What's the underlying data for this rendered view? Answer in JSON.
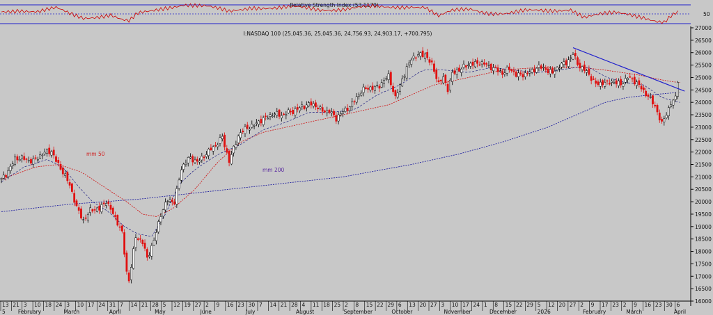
{
  "chart_data": {
    "type": "candlestick",
    "title": "I:NASDAQ 100 (25,045.36, 25,045.36, 24,756.93, 24,903.17, +700.795)",
    "colors": {
      "background": "#c8c8c8",
      "up_candle": "#ffffff",
      "down_candle": "#e01010",
      "candle_outline": "#000000",
      "ma50": "#d02020",
      "ma200": "#2020a0",
      "ma20": "#1a1a80",
      "trendline": "#2222cc",
      "rsi_line": "#cc0000",
      "rsi_bounds": "#2020cc"
    },
    "grid": false,
    "y_axis": {
      "min": 16000,
      "max": 27000,
      "side": "right",
      "ticks": [
        16000,
        16500,
        17000,
        17500,
        18000,
        18500,
        19000,
        19500,
        20000,
        20500,
        21000,
        21500,
        22000,
        22500,
        23000,
        23500,
        24000,
        24500,
        25000,
        25500,
        26000,
        26500,
        27000
      ]
    },
    "x_axis": {
      "day_ticks": [
        "13",
        "21",
        "3",
        "10",
        "18",
        "24",
        "3",
        "10",
        "17",
        "24",
        "31",
        "7",
        "14",
        "21",
        "28",
        "5",
        "12",
        "19",
        "27",
        "2",
        "9",
        "16",
        "23",
        "30",
        "7",
        "14",
        "21",
        "28",
        "4",
        "11",
        "18",
        "25",
        "2",
        "8",
        "15",
        "22",
        "29",
        "6",
        "13",
        "20",
        "27",
        "3",
        "10",
        "17",
        "24",
        "1",
        "8",
        "15",
        "22",
        "29",
        "5",
        "12",
        "20",
        "27",
        "2",
        "9",
        "17",
        "23",
        "2",
        "9",
        "16",
        "23",
        "30",
        "6"
      ],
      "month_labels": [
        {
          "label": "5",
          "at_day": 0
        },
        {
          "label": "February",
          "at_day": 7
        },
        {
          "label": "March",
          "at_day": 27
        },
        {
          "label": "April",
          "at_day": 47
        },
        {
          "label": "May",
          "at_day": 67
        },
        {
          "label": "June",
          "at_day": 87
        },
        {
          "label": "July",
          "at_day": 107
        },
        {
          "label": "August",
          "at_day": 129
        },
        {
          "label": "September",
          "at_day": 150
        },
        {
          "label": "October",
          "at_day": 171
        },
        {
          "label": "November",
          "at_day": 194
        },
        {
          "label": "December",
          "at_day": 214
        },
        {
          "label": "2026",
          "at_day": 235
        },
        {
          "label": "February",
          "at_day": 255
        },
        {
          "label": "March",
          "at_day": 274
        },
        {
          "label": "April",
          "at_day": 295
        }
      ]
    },
    "anchors": [
      [
        0,
        20900
      ],
      [
        6,
        21700
      ],
      [
        14,
        21700
      ],
      [
        22,
        22050
      ],
      [
        27,
        21200
      ],
      [
        30,
        20600
      ],
      [
        33,
        19800
      ],
      [
        36,
        19300
      ],
      [
        39,
        19600
      ],
      [
        43,
        19700
      ],
      [
        46,
        20100
      ],
      [
        50,
        19300
      ],
      [
        53,
        18700
      ],
      [
        55,
        17200
      ],
      [
        56,
        16900
      ],
      [
        59,
        18600
      ],
      [
        62,
        18300
      ],
      [
        64,
        17700
      ],
      [
        67,
        18500
      ],
      [
        70,
        19500
      ],
      [
        73,
        20000
      ],
      [
        76,
        20000
      ],
      [
        79,
        21400
      ],
      [
        82,
        21700
      ],
      [
        86,
        21600
      ],
      [
        90,
        22000
      ],
      [
        94,
        22200
      ],
      [
        97,
        22600
      ],
      [
        100,
        21700
      ],
      [
        104,
        22600
      ],
      [
        108,
        23000
      ],
      [
        112,
        23200
      ],
      [
        116,
        23300
      ],
      [
        120,
        23600
      ],
      [
        124,
        23500
      ],
      [
        128,
        23600
      ],
      [
        132,
        23900
      ],
      [
        136,
        23900
      ],
      [
        140,
        23700
      ],
      [
        144,
        23700
      ],
      [
        147,
        23300
      ],
      [
        150,
        23600
      ],
      [
        154,
        24000
      ],
      [
        158,
        24400
      ],
      [
        162,
        24600
      ],
      [
        166,
        24700
      ],
      [
        170,
        25000
      ],
      [
        173,
        24200
      ],
      [
        176,
        25000
      ],
      [
        180,
        25700
      ],
      [
        183,
        25900
      ],
      [
        186,
        26000
      ],
      [
        189,
        25500
      ],
      [
        192,
        24700
      ],
      [
        194,
        25000
      ],
      [
        196,
        24600
      ],
      [
        198,
        25200
      ],
      [
        202,
        25300
      ],
      [
        206,
        25600
      ],
      [
        210,
        25600
      ],
      [
        214,
        25400
      ],
      [
        217,
        25400
      ],
      [
        220,
        25200
      ],
      [
        223,
        25300
      ],
      [
        226,
        25100
      ],
      [
        230,
        25200
      ],
      [
        233,
        25200
      ],
      [
        236,
        25400
      ],
      [
        239,
        25400
      ],
      [
        242,
        25200
      ],
      [
        245,
        25400
      ],
      [
        248,
        25600
      ],
      [
        251,
        26000
      ],
      [
        254,
        25400
      ],
      [
        258,
        25100
      ],
      [
        261,
        24800
      ],
      [
        264,
        24800
      ],
      [
        266,
        24700
      ],
      [
        268,
        24800
      ],
      [
        272,
        24800
      ],
      [
        275,
        25000
      ],
      [
        278,
        24800
      ],
      [
        281,
        24600
      ],
      [
        284,
        24300
      ],
      [
        287,
        23800
      ],
      [
        289,
        23300
      ],
      [
        290,
        23100
      ],
      [
        292,
        23600
      ],
      [
        294,
        24000
      ],
      [
        296,
        24200
      ],
      [
        297,
        24900
      ]
    ],
    "ma50": {
      "label": "mm 50",
      "anchors": [
        [
          0,
          20900
        ],
        [
          15,
          21400
        ],
        [
          25,
          21500
        ],
        [
          35,
          21200
        ],
        [
          45,
          20600
        ],
        [
          55,
          20000
        ],
        [
          62,
          19500
        ],
        [
          68,
          19400
        ],
        [
          75,
          19700
        ],
        [
          85,
          20500
        ],
        [
          95,
          21600
        ],
        [
          105,
          22400
        ],
        [
          115,
          22800
        ],
        [
          125,
          23000
        ],
        [
          140,
          23300
        ],
        [
          155,
          23600
        ],
        [
          170,
          23900
        ],
        [
          180,
          24300
        ],
        [
          190,
          24700
        ],
        [
          205,
          25000
        ],
        [
          220,
          25300
        ],
        [
          235,
          25400
        ],
        [
          245,
          25400
        ],
        [
          255,
          25400
        ],
        [
          265,
          25300
        ],
        [
          280,
          25100
        ],
        [
          290,
          24900
        ],
        [
          297,
          24800
        ]
      ]
    },
    "ma200": {
      "label": "mm 200",
      "anchors": [
        [
          0,
          19600
        ],
        [
          30,
          19900
        ],
        [
          60,
          20100
        ],
        [
          90,
          20400
        ],
        [
          120,
          20700
        ],
        [
          150,
          21000
        ],
        [
          180,
          21500
        ],
        [
          200,
          21900
        ],
        [
          220,
          22400
        ],
        [
          240,
          23000
        ],
        [
          255,
          23600
        ],
        [
          265,
          24000
        ],
        [
          275,
          24200
        ],
        [
          285,
          24300
        ],
        [
          297,
          24400
        ]
      ]
    },
    "ma20": {
      "anchors": [
        [
          0,
          20800
        ],
        [
          10,
          21400
        ],
        [
          20,
          21700
        ],
        [
          27,
          21400
        ],
        [
          33,
          20700
        ],
        [
          40,
          20000
        ],
        [
          47,
          19600
        ],
        [
          54,
          19000
        ],
        [
          60,
          18700
        ],
        [
          66,
          18600
        ],
        [
          72,
          19500
        ],
        [
          78,
          20700
        ],
        [
          85,
          21300
        ],
        [
          95,
          21900
        ],
        [
          105,
          22300
        ],
        [
          115,
          22900
        ],
        [
          125,
          23200
        ],
        [
          135,
          23600
        ],
        [
          145,
          23600
        ],
        [
          155,
          23700
        ],
        [
          165,
          24300
        ],
        [
          175,
          24700
        ],
        [
          185,
          25300
        ],
        [
          195,
          25300
        ],
        [
          205,
          25200
        ],
        [
          215,
          25400
        ],
        [
          225,
          25300
        ],
        [
          235,
          25200
        ],
        [
          245,
          25300
        ],
        [
          252,
          25400
        ],
        [
          258,
          25400
        ],
        [
          266,
          25000
        ],
        [
          274,
          24800
        ],
        [
          282,
          24700
        ],
        [
          290,
          24200
        ],
        [
          297,
          24000
        ]
      ]
    },
    "trendline": {
      "from": [
        251,
        26200
      ],
      "to": [
        300,
        24450
      ]
    },
    "rsi": {
      "title": "Relative Strength Index (53.1170)",
      "level_label": "50",
      "min": 0,
      "max": 100,
      "upper": 70,
      "lower": 30,
      "anchors": [
        [
          0,
          55
        ],
        [
          8,
          60
        ],
        [
          16,
          56
        ],
        [
          24,
          62
        ],
        [
          30,
          50
        ],
        [
          36,
          42
        ],
        [
          42,
          46
        ],
        [
          48,
          50
        ],
        [
          53,
          38
        ],
        [
          56,
          34
        ],
        [
          60,
          50
        ],
        [
          66,
          56
        ],
        [
          72,
          64
        ],
        [
          80,
          72
        ],
        [
          90,
          66
        ],
        [
          100,
          55
        ],
        [
          110,
          66
        ],
        [
          120,
          63
        ],
        [
          130,
          64
        ],
        [
          140,
          60
        ],
        [
          150,
          62
        ],
        [
          160,
          65
        ],
        [
          170,
          64
        ],
        [
          180,
          68
        ],
        [
          186,
          66
        ],
        [
          192,
          45
        ],
        [
          198,
          56
        ],
        [
          206,
          61
        ],
        [
          214,
          54
        ],
        [
          222,
          52
        ],
        [
          230,
          56
        ],
        [
          240,
          57
        ],
        [
          250,
          62
        ],
        [
          256,
          44
        ],
        [
          262,
          48
        ],
        [
          270,
          52
        ],
        [
          276,
          50
        ],
        [
          282,
          45
        ],
        [
          288,
          36
        ],
        [
          291,
          33
        ],
        [
          294,
          45
        ],
        [
          297,
          53
        ]
      ]
    }
  }
}
